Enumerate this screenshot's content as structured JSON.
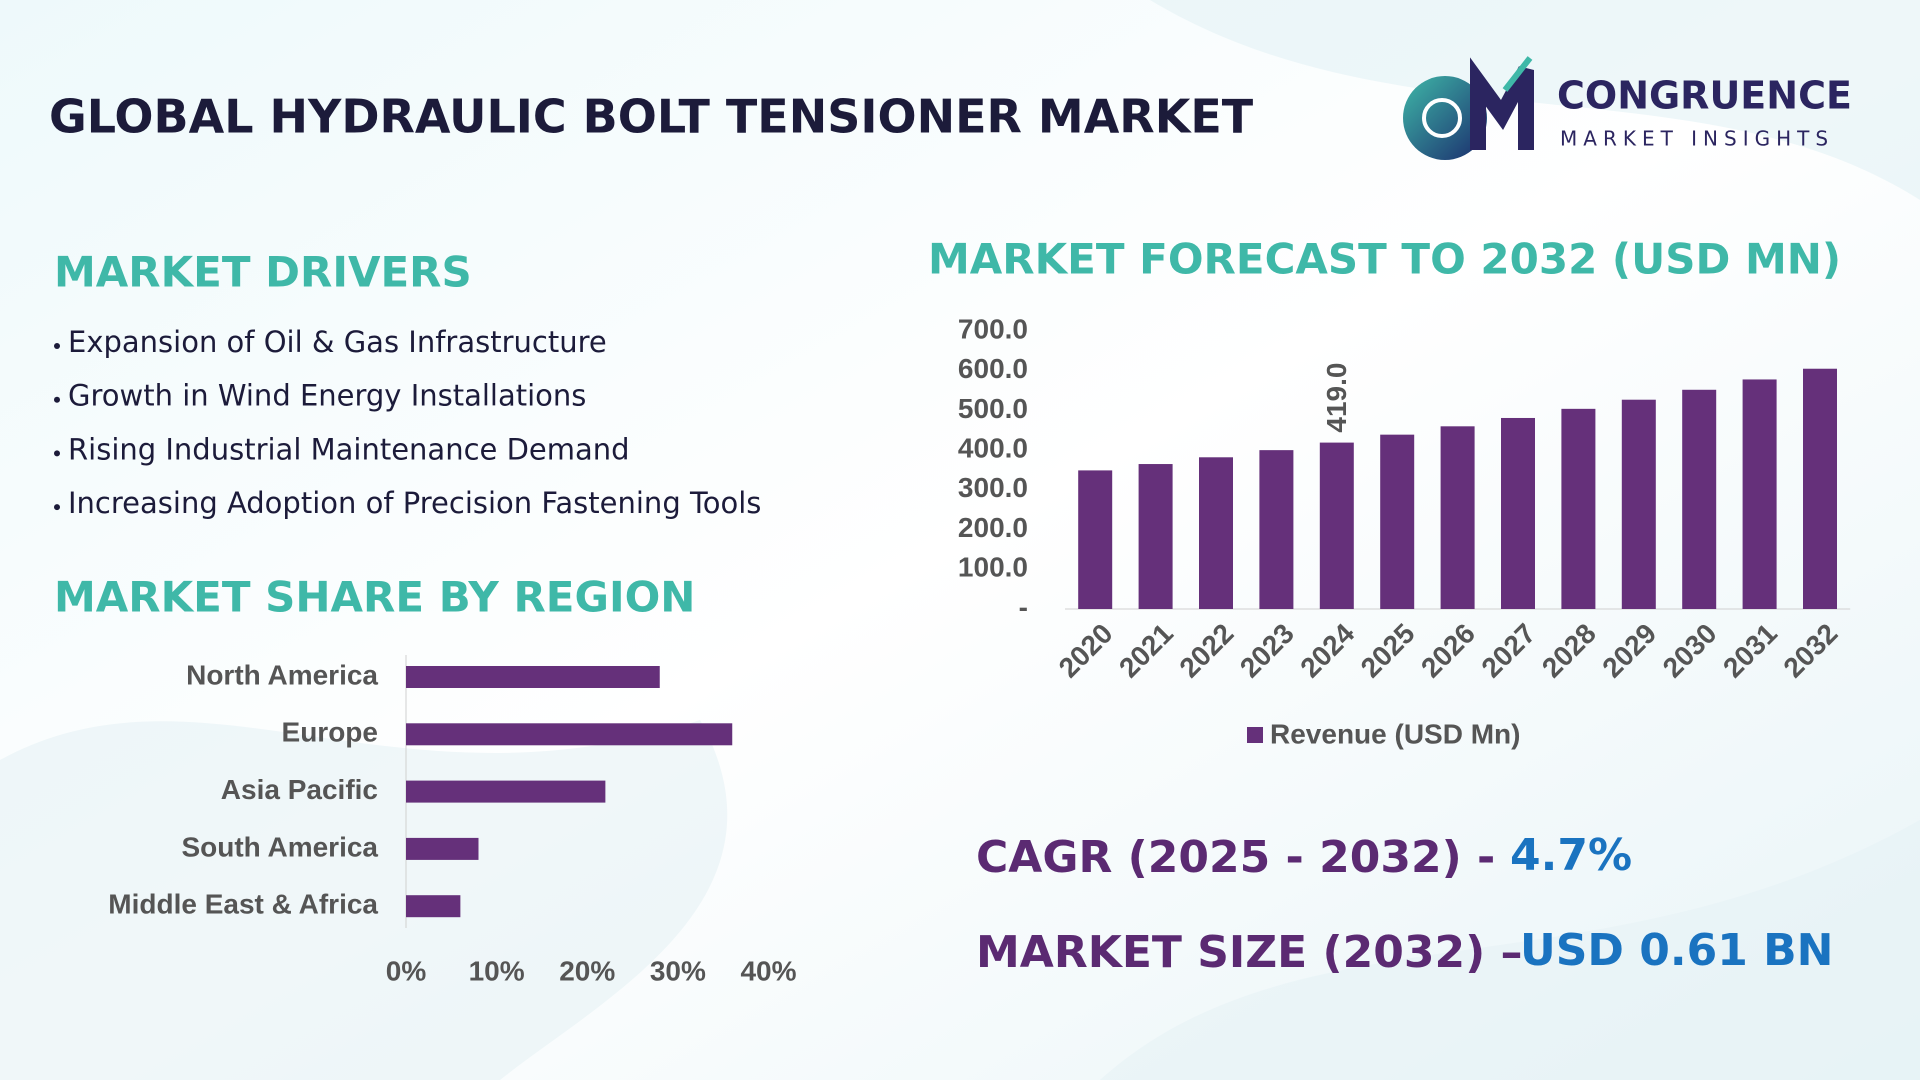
{
  "header": {
    "title": "GLOBAL HYDRAULIC BOLT TENSIONER MARKET"
  },
  "logo": {
    "name": "CONGRUENCE",
    "tagline": "MARKET INSIGHTS"
  },
  "drivers": {
    "title": "MARKET DRIVERS",
    "items": [
      "Expansion of Oil & Gas Infrastructure",
      "Growth in Wind Energy Installations",
      "Rising Industrial Maintenance Demand",
      "Increasing Adoption of Precision Fastening Tools"
    ]
  },
  "chart_data": [
    {
      "type": "barh",
      "title": "MARKET SHARE BY REGION",
      "categories": [
        "North America",
        "Europe",
        "Asia Pacific",
        "South America",
        "Middle East & Africa"
      ],
      "values": [
        28,
        36,
        22,
        8,
        6
      ],
      "color": "#65307a",
      "xlim": [
        0,
        40
      ],
      "xticks": [
        {
          "value": 0,
          "label": "0%"
        },
        {
          "value": 10,
          "label": "10%"
        },
        {
          "value": 20,
          "label": "20%"
        },
        {
          "value": 30,
          "label": "30%"
        },
        {
          "value": 40,
          "label": "40%"
        }
      ]
    },
    {
      "type": "bar",
      "title": "MARKET FORECAST TO 2032 (USD MN)",
      "categories": [
        "2020",
        "2021",
        "2022",
        "2023",
        "2024",
        "2025",
        "2026",
        "2027",
        "2028",
        "2029",
        "2030",
        "2031",
        "2032"
      ],
      "series": [
        {
          "name": "Revenue (USD Mn)",
          "color": "#65307a",
          "values": [
            349,
            365,
            382,
            400,
            419,
            439,
            460,
            481,
            504,
            527,
            552,
            578,
            605
          ],
          "value_labels": [
            null,
            null,
            null,
            null,
            "419.0",
            null,
            null,
            null,
            null,
            null,
            null,
            null,
            null
          ]
        }
      ],
      "ylim": [
        0,
        700
      ],
      "yticks": [
        {
          "value": 0,
          "label": "-"
        },
        {
          "value": 100,
          "label": "100.0"
        },
        {
          "value": 200,
          "label": "200.0"
        },
        {
          "value": 300,
          "label": "300.0"
        },
        {
          "value": 400,
          "label": "400.0"
        },
        {
          "value": 500,
          "label": "500.0"
        },
        {
          "value": 600,
          "label": "600.0"
        },
        {
          "value": 700,
          "label": "700.0"
        }
      ],
      "legend": "bottom"
    }
  ],
  "cagr": {
    "label": "CAGR (2025 - 2032) -",
    "value": "4.7%"
  },
  "market_size": {
    "label": "MARKET SIZE (2032) –",
    "value": "USD 0.61 BN"
  }
}
